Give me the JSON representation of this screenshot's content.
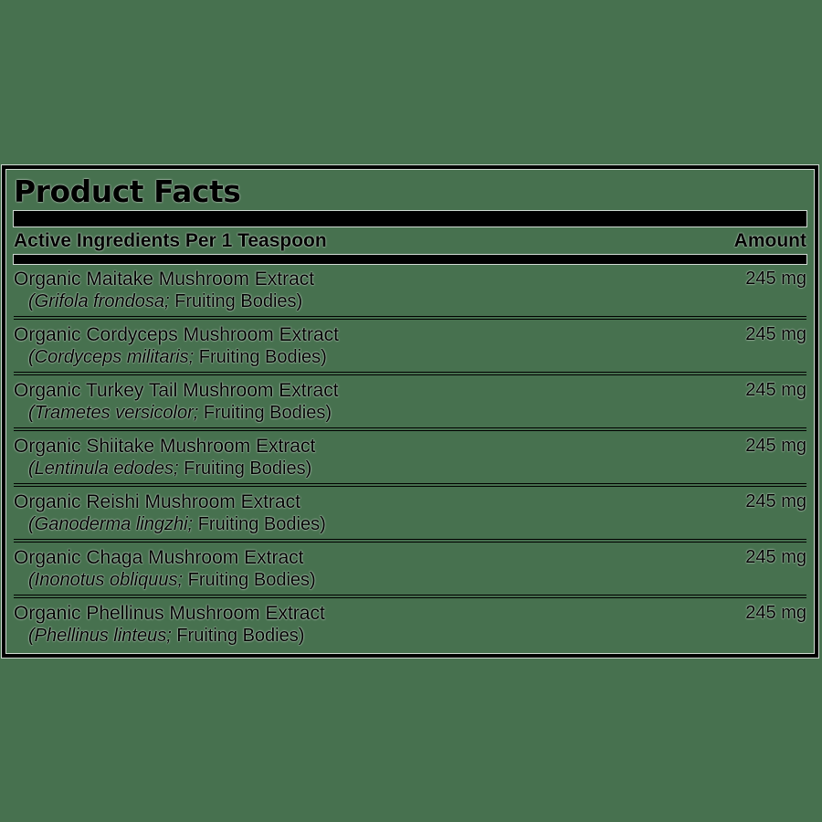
{
  "colors": {
    "background": "#47714F",
    "ink": "#000000",
    "halo": "#FFFFFF"
  },
  "label": {
    "title": "Product Facts",
    "header": {
      "left": "Active Ingredients Per 1 Teaspoon",
      "right": "Amount"
    },
    "ingredients": [
      {
        "name": "Organic Maitake Mushroom Extract",
        "latin": "(Grifola frondosa;",
        "detail": "Fruiting Bodies)",
        "amount": "245 mg"
      },
      {
        "name": "Organic Cordyceps Mushroom Extract",
        "latin": "(Cordyceps militaris;",
        "detail": "Fruiting Bodies)",
        "amount": "245 mg"
      },
      {
        "name": "Organic Turkey Tail Mushroom Extract",
        "latin": "(Trametes versicolor;",
        "detail": "Fruiting Bodies)",
        "amount": "245 mg"
      },
      {
        "name": "Organic Shiitake Mushroom Extract",
        "latin": "(Lentinula edodes;",
        "detail": "Fruiting Bodies)",
        "amount": "245 mg"
      },
      {
        "name": "Organic Reishi Mushroom Extract",
        "latin": "(Ganoderma lingzhi;",
        "detail": "Fruiting Bodies)",
        "amount": "245 mg"
      },
      {
        "name": "Organic Chaga Mushroom Extract",
        "latin": "(Inonotus obliquus;",
        "detail": "Fruiting Bodies)",
        "amount": "245 mg"
      },
      {
        "name": "Organic Phellinus Mushroom Extract",
        "latin": "(Phellinus linteus;",
        "detail": "Fruiting Bodies)",
        "amount": "245 mg"
      }
    ]
  }
}
